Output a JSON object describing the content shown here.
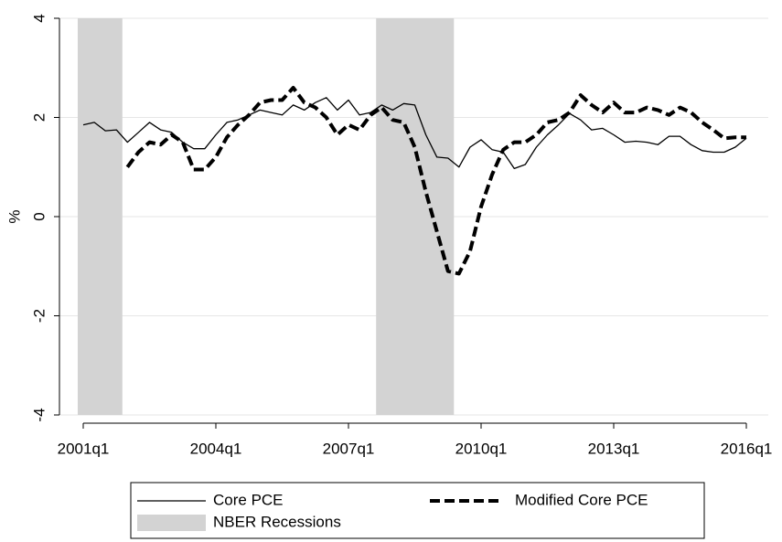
{
  "chart_data": {
    "type": "line",
    "y_label": "%",
    "categories": [
      "2001q1",
      null,
      null,
      null,
      null,
      null,
      null,
      null,
      null,
      null,
      null,
      null,
      "2004q1",
      null,
      null,
      null,
      null,
      null,
      null,
      null,
      null,
      null,
      null,
      null,
      "2007q1",
      null,
      null,
      null,
      null,
      null,
      null,
      null,
      null,
      null,
      null,
      null,
      "2010q1",
      null,
      null,
      null,
      null,
      null,
      null,
      null,
      null,
      null,
      null,
      null,
      "2013q1",
      null,
      null,
      null,
      null,
      null,
      null,
      null,
      null,
      null,
      null,
      null,
      "2016q1"
    ],
    "ylim": [
      -4,
      4
    ],
    "yticks": [
      -4,
      -2,
      0,
      2,
      4
    ],
    "grid": true,
    "series": [
      {
        "name": "Core PCE",
        "color": "#000000",
        "dash": false,
        "kind": "line",
        "values": [
          1.85,
          1.9,
          1.73,
          1.75,
          1.5,
          1.7,
          1.9,
          1.75,
          1.7,
          1.5,
          1.37,
          1.37,
          1.65,
          1.9,
          1.95,
          2.05,
          2.15,
          2.1,
          2.05,
          2.25,
          2.15,
          2.3,
          2.4,
          2.15,
          2.35,
          2.05,
          2.1,
          2.25,
          2.15,
          2.28,
          2.25,
          1.65,
          1.2,
          1.18,
          1.0,
          1.4,
          1.55,
          1.35,
          1.3,
          0.97,
          1.05,
          1.4,
          1.65,
          1.85,
          2.08,
          1.95,
          1.75,
          1.78,
          1.65,
          1.5,
          1.52,
          1.5,
          1.45,
          1.62,
          1.62,
          1.45,
          1.33,
          1.3,
          1.3,
          1.4,
          1.58
        ]
      },
      {
        "name": "Modified Core PCE",
        "color": "#000000",
        "dash": true,
        "kind": "line",
        "values": [
          null,
          null,
          null,
          null,
          1.0,
          1.3,
          1.5,
          1.45,
          1.65,
          1.5,
          0.95,
          0.95,
          1.2,
          1.6,
          1.85,
          2.05,
          2.3,
          2.35,
          2.35,
          2.6,
          2.3,
          2.2,
          2.0,
          1.65,
          1.85,
          1.75,
          2.05,
          2.2,
          1.95,
          1.9,
          1.4,
          0.5,
          -0.3,
          -1.1,
          -1.15,
          -0.7,
          0.2,
          0.85,
          1.35,
          1.5,
          1.5,
          1.65,
          1.9,
          1.95,
          2.1,
          2.45,
          2.25,
          2.1,
          2.3,
          2.1,
          2.1,
          2.2,
          2.15,
          2.05,
          2.2,
          2.1,
          1.9,
          1.75,
          1.58,
          1.6,
          1.6
        ]
      },
      {
        "name": "NBER Recessions",
        "color": "#d3d3d3",
        "kind": "bar",
        "values": [
          4,
          4,
          4,
          4,
          null,
          null,
          null,
          null,
          null,
          null,
          null,
          null,
          null,
          null,
          null,
          null,
          null,
          null,
          null,
          null,
          null,
          null,
          null,
          null,
          null,
          null,
          null,
          4,
          4,
          4,
          4,
          4,
          4,
          4,
          null,
          null,
          null,
          null,
          null,
          null,
          null,
          null,
          null,
          null,
          null,
          null,
          null,
          null,
          null,
          null,
          null,
          null,
          null,
          null,
          null,
          null,
          null,
          null,
          null,
          null,
          null
        ]
      }
    ]
  }
}
